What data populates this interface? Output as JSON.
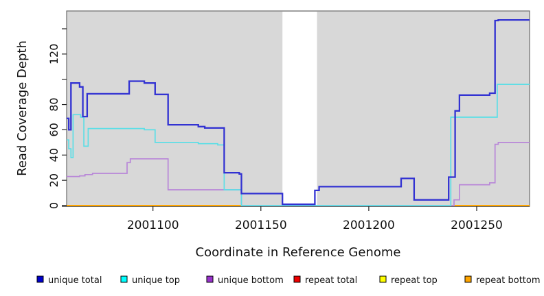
{
  "chart_data": {
    "type": "line",
    "subtype": "step-coverage-plot",
    "title": "",
    "xlabel": "Coordinate in Reference Genome",
    "ylabel": "Read Coverage Depth",
    "xlim": [
      2001060,
      2001274.5
    ],
    "ylim": [
      0,
      154
    ],
    "grid": false,
    "plot_bg_color": "#D8D8D8",
    "border_color": "#6B6B6B",
    "axis_color": "#222222",
    "x_ticks": [
      2001100,
      2001150,
      2001200,
      2001250
    ],
    "x_tick_labels": [
      "2001100",
      "2001150",
      "2001200",
      "2001250"
    ],
    "y_ticks": [
      0,
      20,
      40,
      60,
      80,
      100,
      120,
      140
    ],
    "y_tick_labels": [
      "0",
      "20",
      "40",
      "60",
      "80",
      "",
      "120",
      ""
    ],
    "gap_region": {
      "x_start": 2001160,
      "x_end": 2001176,
      "color": "#FFFFFF",
      "note": "white no-data band across full plot height"
    },
    "baseline_segments": [
      {
        "color": "#FFA500",
        "x_start": 2001060,
        "x_end": 2001141
      },
      {
        "color": "#90EE90",
        "x_start": 2001141,
        "x_end": 2001237
      },
      {
        "color": "#FFA500",
        "x_start": 2001237,
        "x_end": 2001274.5
      }
    ],
    "series": [
      {
        "name": "repeat bottom",
        "color": "#FFA500",
        "width": 1.6,
        "points": [
          [
            2001060,
            0
          ],
          [
            2001274.5,
            0
          ]
        ]
      },
      {
        "name": "repeat top",
        "color": "#FFFF00",
        "width": 1.6,
        "points": [
          [
            2001060,
            0
          ],
          [
            2001274.5,
            0
          ]
        ]
      },
      {
        "name": "repeat total",
        "color": "#EE0000",
        "width": 1.6,
        "points": [
          [
            2001060,
            0
          ],
          [
            2001274.5,
            0
          ]
        ]
      },
      {
        "name": "unique bottom",
        "color": "#B886D8",
        "width": 1.7,
        "points": [
          [
            2001060,
            23
          ],
          [
            2001066,
            23.5
          ],
          [
            2001068.5,
            24.5
          ],
          [
            2001072,
            25.5
          ],
          [
            2001088,
            34
          ],
          [
            2001089.5,
            37
          ],
          [
            2001107,
            12.5
          ],
          [
            2001141,
            0
          ],
          [
            2001239.5,
            4.5
          ],
          [
            2001242,
            16.5
          ],
          [
            2001256,
            18
          ],
          [
            2001258.5,
            48.5
          ],
          [
            2001260,
            50
          ],
          [
            2001274.5,
            50
          ]
        ]
      },
      {
        "name": "unique top",
        "color": "#5CDEE6",
        "width": 1.7,
        "points": [
          [
            2001060,
            52
          ],
          [
            2001061,
            45
          ],
          [
            2001062,
            38
          ],
          [
            2001063,
            72
          ],
          [
            2001066.5,
            70
          ],
          [
            2001068,
            47
          ],
          [
            2001070,
            61
          ],
          [
            2001096,
            60
          ],
          [
            2001101,
            50
          ],
          [
            2001121,
            49
          ],
          [
            2001130,
            48
          ],
          [
            2001133,
            12.5
          ],
          [
            2001141,
            0
          ],
          [
            2001238,
            70
          ],
          [
            2001259.5,
            96
          ],
          [
            2001274.5,
            96
          ]
        ]
      },
      {
        "name": "unique total",
        "color": "#3232D2",
        "width": 2.3,
        "points": [
          [
            2001060,
            69
          ],
          [
            2001061,
            60
          ],
          [
            2001062,
            97
          ],
          [
            2001066,
            94
          ],
          [
            2001067.5,
            70.5
          ],
          [
            2001069.5,
            88.5
          ],
          [
            2001089,
            98.5
          ],
          [
            2001096,
            97
          ],
          [
            2001101,
            88
          ],
          [
            2001107,
            64
          ],
          [
            2001121,
            62.5
          ],
          [
            2001124,
            61.5
          ],
          [
            2001133,
            26
          ],
          [
            2001140,
            25
          ],
          [
            2001141,
            9.5
          ],
          [
            2001160,
            1
          ],
          [
            2001175,
            12
          ],
          [
            2001177,
            15
          ],
          [
            2001215,
            21.5
          ],
          [
            2001221,
            4.5
          ],
          [
            2001237,
            22.5
          ],
          [
            2001240,
            75
          ],
          [
            2001242,
            87.5
          ],
          [
            2001256,
            89
          ],
          [
            2001258.5,
            146.5
          ],
          [
            2001260,
            147
          ],
          [
            2001274.5,
            147
          ]
        ]
      }
    ],
    "legend": {
      "position": "bottom",
      "items": [
        {
          "label": "unique total",
          "color": "#0000CC"
        },
        {
          "label": "unique top",
          "color": "#00FFFF"
        },
        {
          "label": "unique bottom",
          "color": "#9932CC"
        },
        {
          "label": "repeat total",
          "color": "#EE0000"
        },
        {
          "label": "repeat top",
          "color": "#FFFF00"
        },
        {
          "label": "repeat bottom",
          "color": "#FFA500"
        }
      ]
    }
  }
}
